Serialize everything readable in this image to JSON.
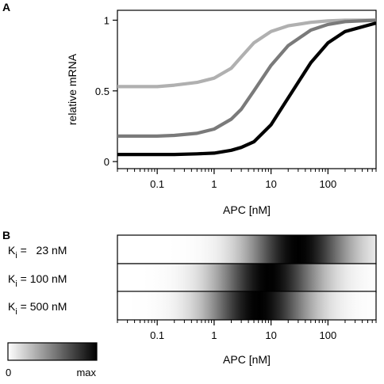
{
  "chart_data": [
    {
      "type": "line",
      "panel_label": "A",
      "xlabel": "APC [nM]",
      "ylabel": "relative mRNA",
      "xscale": "log",
      "xlim": [
        0.02,
        700
      ],
      "ylim": [
        -0.05,
        1.07
      ],
      "x_ticks": [
        "0.1",
        "1",
        "10",
        "100"
      ],
      "y_ticks": [
        "0",
        "0.5",
        "1"
      ],
      "grid": false,
      "legend": "none",
      "series": [
        {
          "color": "#b0b0b0",
          "x": [
            0.02,
            0.05,
            0.1,
            0.2,
            0.5,
            1,
            2,
            3,
            5,
            10,
            20,
            50,
            100,
            200,
            700
          ],
          "y": [
            0.53,
            0.53,
            0.53,
            0.54,
            0.56,
            0.59,
            0.66,
            0.74,
            0.84,
            0.92,
            0.96,
            0.985,
            0.995,
            1.0,
            1.0
          ]
        },
        {
          "color": "#7a7a7a",
          "x": [
            0.02,
            0.05,
            0.1,
            0.2,
            0.5,
            1,
            2,
            3,
            5,
            10,
            20,
            50,
            100,
            200,
            700
          ],
          "y": [
            0.18,
            0.18,
            0.18,
            0.185,
            0.2,
            0.23,
            0.3,
            0.37,
            0.5,
            0.68,
            0.82,
            0.93,
            0.97,
            0.99,
            1.0
          ]
        },
        {
          "color": "#000000",
          "x": [
            0.02,
            0.05,
            0.1,
            0.2,
            0.5,
            1,
            2,
            3,
            5,
            10,
            20,
            50,
            100,
            200,
            700
          ],
          "y": [
            0.05,
            0.05,
            0.05,
            0.05,
            0.055,
            0.06,
            0.08,
            0.1,
            0.14,
            0.26,
            0.45,
            0.7,
            0.84,
            0.92,
            0.98
          ]
        }
      ]
    },
    {
      "type": "heatmap",
      "panel_label": "B",
      "xlabel": "APC [nM]",
      "xscale": "log",
      "xlim": [
        0.02,
        700
      ],
      "x_ticks": [
        "0.1",
        "1",
        "10",
        "100"
      ],
      "rows": [
        {
          "label_prefix": "K",
          "label_sub": "i",
          "label_value": " =   23 nM",
          "ki": 23,
          "peak": 30
        },
        {
          "label_prefix": "K",
          "label_sub": "i",
          "label_value": " = 100 nM",
          "ki": 100,
          "peak": 9
        },
        {
          "label_prefix": "K",
          "label_sub": "i",
          "label_value": " = 500 nM",
          "ki": 500,
          "peak": 6
        }
      ],
      "colorbar": {
        "min_label": "0",
        "max_label": "max",
        "colors": [
          "#ffffff",
          "#000000"
        ]
      }
    }
  ]
}
